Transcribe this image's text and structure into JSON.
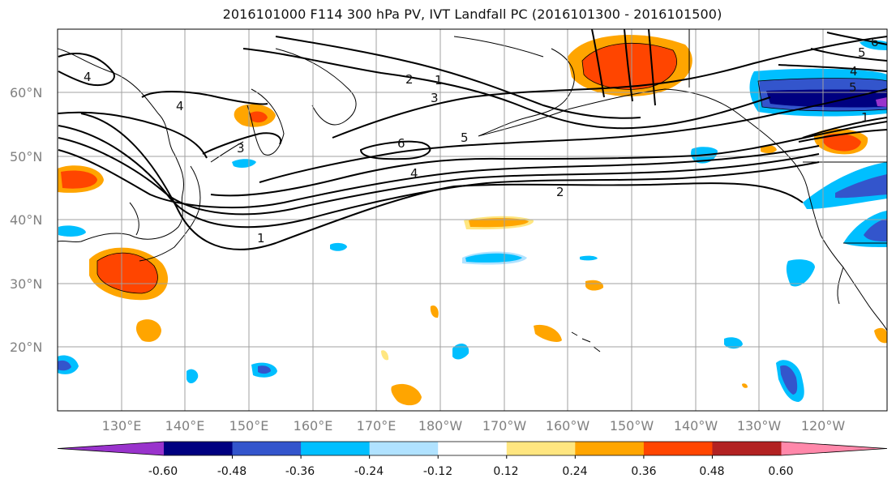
{
  "title": "2016101000 F114 300 hPa PV, IVT Landfall PC (2016101300 - 2016101500)",
  "map": {
    "lat_labels": [
      "60°N",
      "50°N",
      "40°N",
      "30°N",
      "20°N"
    ],
    "lon_labels": [
      "130°E",
      "140°E",
      "150°E",
      "160°E",
      "170°E",
      "180°W",
      "170°W",
      "160°W",
      "150°W",
      "140°W",
      "130°W",
      "120°W"
    ],
    "contour_labels": [
      "4",
      "4",
      "3",
      "2",
      "1",
      "3",
      "6",
      "5",
      "4",
      "2",
      "1",
      "5",
      "4",
      "6",
      "5",
      "1"
    ],
    "colors": {
      "coast": "#000000",
      "grid": "#a0a0a0",
      "contour": "#000000"
    }
  },
  "colorbar": {
    "tick_labels": [
      "-0.60",
      "-0.48",
      "-0.36",
      "-0.24",
      "-0.12",
      "0.12",
      "0.24",
      "0.36",
      "0.48",
      "0.60"
    ],
    "colors": [
      "#9933cc",
      "#000080",
      "#3355cc",
      "#00bfff",
      "#b0e2ff",
      "#ffffff",
      "#ffe680",
      "#ffa500",
      "#ff4500",
      "#b22222",
      "#ff88aa"
    ]
  }
}
